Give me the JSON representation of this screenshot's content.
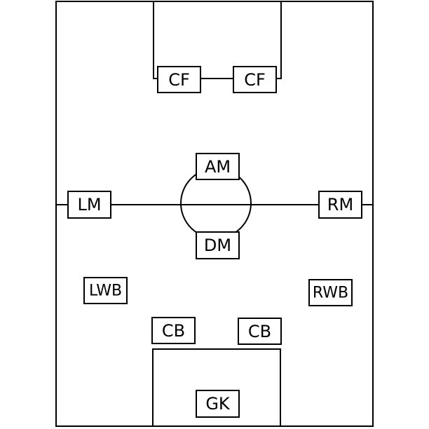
{
  "formation": {
    "positions": [
      {
        "id": "cf-left",
        "label": "CF"
      },
      {
        "id": "cf-right",
        "label": "CF"
      },
      {
        "id": "am",
        "label": "AM"
      },
      {
        "id": "lm",
        "label": "LM"
      },
      {
        "id": "rm",
        "label": "RM"
      },
      {
        "id": "dm",
        "label": "DM"
      },
      {
        "id": "lwb",
        "label": "LWB"
      },
      {
        "id": "rwb",
        "label": "RWB"
      },
      {
        "id": "cb-left",
        "label": "CB"
      },
      {
        "id": "cb-right",
        "label": "CB"
      },
      {
        "id": "gk",
        "label": "GK"
      }
    ]
  },
  "colors": {
    "line": "#000000",
    "background": "#ffffff"
  }
}
